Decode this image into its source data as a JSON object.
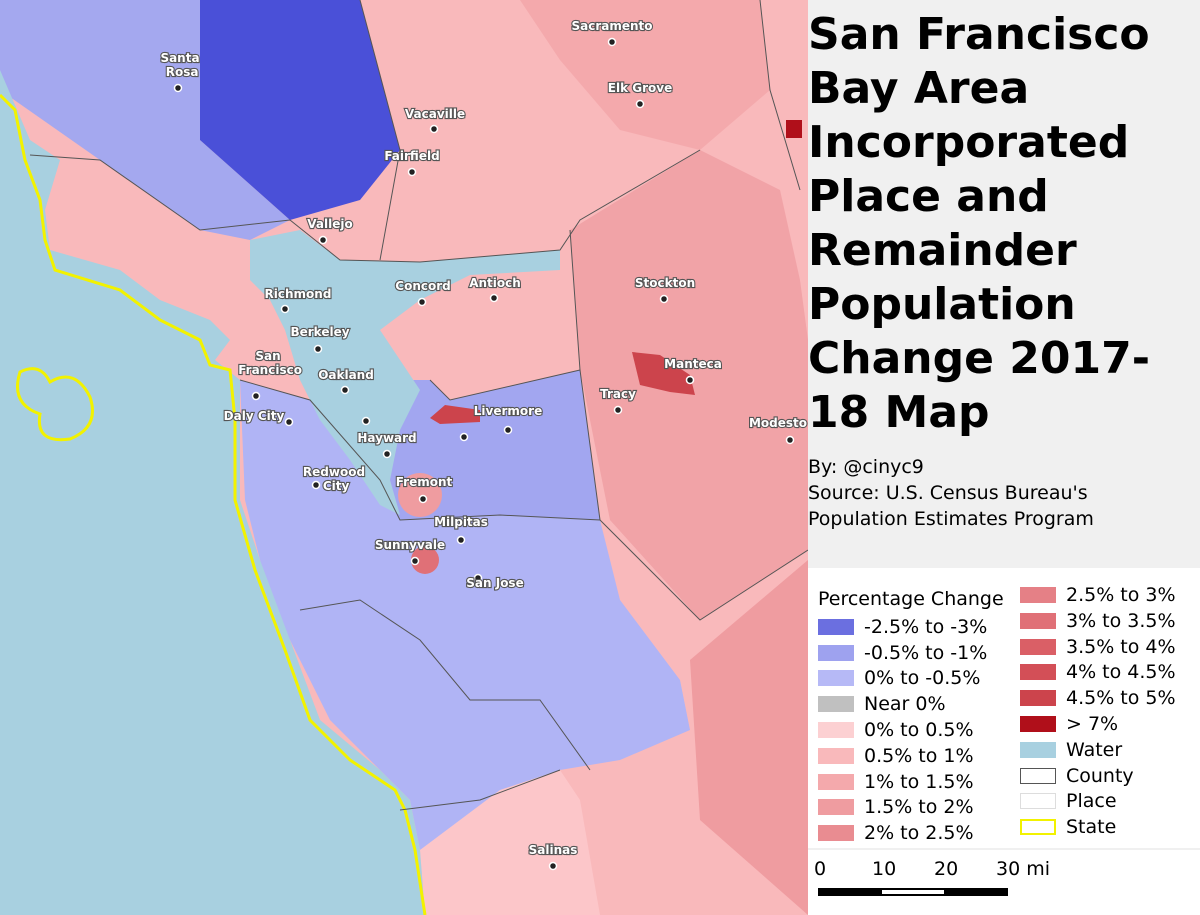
{
  "title": "San Francisco Bay Area Incorporated Place and Remainder Population Change 2017-18 Map",
  "byline": "By: @cinyc9",
  "source": "Source: U.S. Census Bureau's Population Estimates Program",
  "cities": [
    "Sacramento",
    "Santa Rosa",
    "Elk Grove",
    "Vacaville",
    "Fairfield",
    "Vallejo",
    "Richmond",
    "Concord",
    "Antioch",
    "Stockton",
    "Berkeley",
    "San Francisco",
    "Oakland",
    "Manteca",
    "Tracy",
    "Livermore",
    "Daly City",
    "Modesto",
    "Hayward",
    "Redwood City",
    "Fremont",
    "Milpitas",
    "Sunnyvale",
    "San Jose",
    "Salinas"
  ],
  "legend": {
    "title": "Percentage Change",
    "items": [
      {
        "label": "-2.5% to -3%",
        "color": "#6b6fe0"
      },
      {
        "label": "-0.5% to -1%",
        "color": "#9ea2ef"
      },
      {
        "label": "0% to -0.5%",
        "color": "#b6b9f6"
      },
      {
        "label": "Near 0%",
        "color": "#c0c0c0"
      },
      {
        "label": "0% to 0.5%",
        "color": "#fcd0d2"
      },
      {
        "label": "0.5% to 1%",
        "color": "#f9b9bb"
      },
      {
        "label": "1% to 1.5%",
        "color": "#f4a9ac"
      },
      {
        "label": "1.5% to 2%",
        "color": "#ef9ca0"
      },
      {
        "label": "2% to 2.5%",
        "color": "#e98c91"
      },
      {
        "label": "2.5% to 3%",
        "color": "#e58086"
      },
      {
        "label": "3% to 3.5%",
        "color": "#e07077"
      },
      {
        "label": "3.5% to 4%",
        "color": "#da5f66"
      },
      {
        "label": "4% to 4.5%",
        "color": "#d34f57"
      },
      {
        "label": "4.5% to 5%",
        "color": "#cc444c"
      },
      {
        "label": "> 7%",
        "color": "#b00f1a"
      },
      {
        "label": "Water",
        "color": "#a8d0e0"
      },
      {
        "label": "County",
        "color": "#ffffff"
      },
      {
        "label": "Place",
        "color": "#ffffff"
      },
      {
        "label": "State",
        "color": "#ffffff"
      }
    ]
  },
  "scale": [
    "0",
    "10",
    "20",
    "30 mi"
  ]
}
